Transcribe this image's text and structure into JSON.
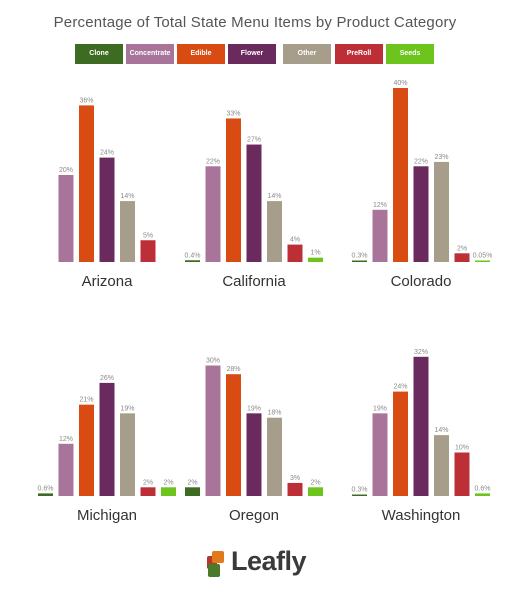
{
  "title": "Percentage of Total State Menu Items by Product Category",
  "logo_text": "Leafly",
  "colors": {
    "Clone": "#3e6b22",
    "Concentrate": "#a8749a",
    "Edible": "#d84b12",
    "Flower": "#6a2a5e",
    "Other": "#a69d8a",
    "PreRoll": "#bd2f37",
    "Seeds": "#6cc41c"
  },
  "chart_data": {
    "type": "bar",
    "title": "Percentage of Total State Menu Items by Product Category",
    "legend_position": "top",
    "categories": [
      "Clone",
      "Concentrate",
      "Edible",
      "Flower",
      "Other",
      "PreRoll",
      "Seeds"
    ],
    "panels": [
      {
        "state": "Arizona",
        "values": [
          null,
          20,
          36,
          24,
          14,
          5,
          null
        ],
        "labels": [
          "",
          "20%",
          "36%",
          "24%",
          "14%",
          "5%",
          ""
        ]
      },
      {
        "state": "California",
        "values": [
          0.4,
          22,
          33,
          27,
          14,
          4,
          1
        ],
        "labels": [
          "0.4%",
          "22%",
          "33%",
          "27%",
          "14%",
          "4%",
          "1%"
        ]
      },
      {
        "state": "Colorado",
        "values": [
          0.3,
          12,
          40,
          22,
          23,
          2,
          0.05
        ],
        "labels": [
          "0.3%",
          "12%",
          "40%",
          "22%",
          "23%",
          "2%",
          "0.05%"
        ]
      },
      {
        "state": "Michigan",
        "values": [
          0.6,
          12,
          21,
          26,
          19,
          2,
          2
        ],
        "labels": [
          "0.6%",
          "12%",
          "21%",
          "26%",
          "19%",
          "2%",
          "2%"
        ]
      },
      {
        "state": "Oregon",
        "values": [
          2,
          30,
          28,
          19,
          18,
          3,
          2
        ],
        "labels": [
          "2%",
          "30%",
          "28%",
          "19%",
          "18%",
          "3%",
          "2%"
        ]
      },
      {
        "state": "Washington",
        "values": [
          0.3,
          19,
          24,
          32,
          14,
          10,
          0.6
        ],
        "labels": [
          "0.3%",
          "19%",
          "24%",
          "32%",
          "14%",
          "10%",
          "0.6%"
        ]
      }
    ]
  }
}
